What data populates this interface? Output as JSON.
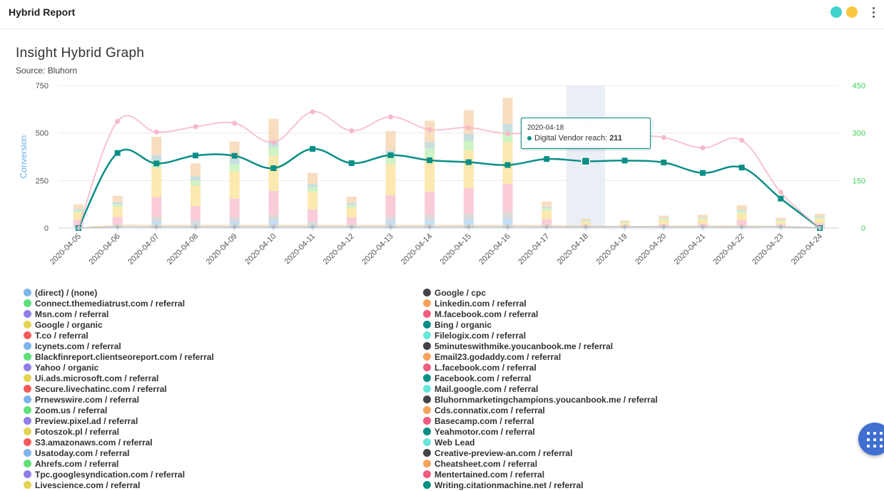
{
  "header": {
    "title": "Hybrid Report",
    "dot_colors": [
      "#3fd3cf",
      "#f8c842"
    ]
  },
  "chart_title": "Insight Hybrid Graph",
  "chart_subtitle": "Source: Bluhorn",
  "tooltip": {
    "date": "2020-04-18",
    "label": "Digital Vendor reach:",
    "value": "211"
  },
  "chart_data": {
    "type": "bar",
    "title": "Insight Hybrid Graph",
    "subtitle": "Source: Bluhorn",
    "categories": [
      "2020-04-05",
      "2020-04-06",
      "2020-04-07",
      "2020-04-08",
      "2020-04-09",
      "2020-04-10",
      "2020-04-11",
      "2020-04-12",
      "2020-04-13",
      "2020-04-14",
      "2020-04-15",
      "2020-04-16",
      "2020-04-17",
      "2020-04-18",
      "2020-04-19",
      "2020-04-20",
      "2020-04-21",
      "2020-04-22",
      "2020-04-23",
      "2020-04-24"
    ],
    "y_left": {
      "label": "Conversion",
      "ylim": [
        0,
        750
      ],
      "ticks": [
        0,
        250,
        500,
        750
      ]
    },
    "y_right": {
      "label": "",
      "ylim": [
        0,
        450
      ],
      "ticks": [
        0,
        150,
        300,
        450
      ]
    },
    "highlighted_category": "2020-04-18",
    "bar_totals": [
      125,
      170,
      480,
      340,
      455,
      575,
      290,
      165,
      510,
      565,
      620,
      685,
      140,
      50,
      40,
      65,
      70,
      120,
      55,
      75
    ],
    "bar_colors": [
      "#bcdaf5",
      "#d6d6d6",
      "#f9c6d3",
      "#fbe7a6",
      "#c9f2c0",
      "#c2dcdc",
      "#f7d9b9"
    ],
    "series": [
      {
        "name": "Digital Vendor reach",
        "axis": "right",
        "type": "line",
        "color": "#0a8f87",
        "values": [
          0,
          237,
          204,
          229,
          228,
          189,
          250,
          205,
          230,
          214,
          208,
          199,
          218,
          211,
          213,
          207,
          174,
          191,
          93,
          0
        ]
      },
      {
        "name": "",
        "axis": "right",
        "type": "line",
        "color": "#f7b8c8",
        "values": [
          0,
          337,
          303,
          320,
          331,
          271,
          367,
          307,
          351,
          311,
          317,
          298,
          310,
          334,
          297,
          286,
          253,
          277,
          113,
          0
        ]
      },
      {
        "name": "",
        "axis": "left",
        "type": "line",
        "color": "#f8d8a8",
        "values": [
          0,
          14,
          14,
          14,
          14,
          14,
          14,
          14,
          14,
          14,
          14,
          14,
          12,
          10,
          8,
          9,
          10,
          10,
          8,
          2
        ]
      },
      {
        "name": "",
        "axis": "left",
        "type": "line",
        "color": "#b8bcc2",
        "values": [
          0,
          6,
          6,
          6,
          6,
          6,
          6,
          6,
          6,
          6,
          6,
          6,
          6,
          6,
          6,
          6,
          6,
          6,
          6,
          1
        ]
      }
    ],
    "legend": [
      {
        "name": "(direct) / (none)",
        "color": "#7cb5ec"
      },
      {
        "name": "Connect.themediatrust.com / referral",
        "color": "#5fe07a"
      },
      {
        "name": "Msn.com / referral",
        "color": "#8f7ee8"
      },
      {
        "name": "Google / organic",
        "color": "#e4d354"
      },
      {
        "name": "T.co / referral",
        "color": "#f45b5b"
      },
      {
        "name": "Icynets.com / referral",
        "color": "#7cb5ec"
      },
      {
        "name": "Blackfinreport.clientseoreport.com / referral",
        "color": "#5fe07a"
      },
      {
        "name": "Yahoo / organic",
        "color": "#8f7ee8"
      },
      {
        "name": "Ui.ads.microsoft.com / referral",
        "color": "#e4d354"
      },
      {
        "name": "Secure.livechatinc.com / referral",
        "color": "#f45b5b"
      },
      {
        "name": "Prnewswire.com / referral",
        "color": "#7cb5ec"
      },
      {
        "name": "Zoom.us / referral",
        "color": "#5fe07a"
      },
      {
        "name": "Preview.pixel.ad / referral",
        "color": "#8f7ee8"
      },
      {
        "name": "Fotoszok.pl / referral",
        "color": "#e4d354"
      },
      {
        "name": "S3.amazonaws.com / referral",
        "color": "#f45b5b"
      },
      {
        "name": "Usatoday.com / referral",
        "color": "#7cb5ec"
      },
      {
        "name": "Ahrefs.com / referral",
        "color": "#5fe07a"
      },
      {
        "name": "Tpc.googlesyndication.com / referral",
        "color": "#8f7ee8"
      },
      {
        "name": "Livescience.com / referral",
        "color": "#e4d354"
      },
      {
        "name": "Google / cpc",
        "color": "#434348"
      },
      {
        "name": "Linkedin.com / referral",
        "color": "#f7a35c"
      },
      {
        "name": "M.facebook.com / referral",
        "color": "#f15c80"
      },
      {
        "name": "Bing / organic",
        "color": "#0a8f87"
      },
      {
        "name": "Filelogix.com / referral",
        "color": "#67e6d9"
      },
      {
        "name": "5minuteswithmike.youcanbook.me / referral",
        "color": "#434348"
      },
      {
        "name": "Email23.godaddy.com / referral",
        "color": "#f7a35c"
      },
      {
        "name": "L.facebook.com / referral",
        "color": "#f15c80"
      },
      {
        "name": "Facebook.com / referral",
        "color": "#0a8f87"
      },
      {
        "name": "Mail.google.com / referral",
        "color": "#67e6d9"
      },
      {
        "name": "Bluhornmarketingchampions.youcanbook.me / referral",
        "color": "#434348"
      },
      {
        "name": "Cds.connatix.com / referral",
        "color": "#f7a35c"
      },
      {
        "name": "Basecamp.com / referral",
        "color": "#f15c80"
      },
      {
        "name": "Yeahmotor.com / referral",
        "color": "#0a8f87"
      },
      {
        "name": "Web Lead",
        "color": "#67e6d9"
      },
      {
        "name": "Creative-preview-an.com / referral",
        "color": "#434348"
      },
      {
        "name": "Cheatsheet.com / referral",
        "color": "#f7a35c"
      },
      {
        "name": "Mentertained.com / referral",
        "color": "#f15c80"
      },
      {
        "name": "Writing.citationmachine.net / referral",
        "color": "#0a8f87"
      }
    ]
  }
}
